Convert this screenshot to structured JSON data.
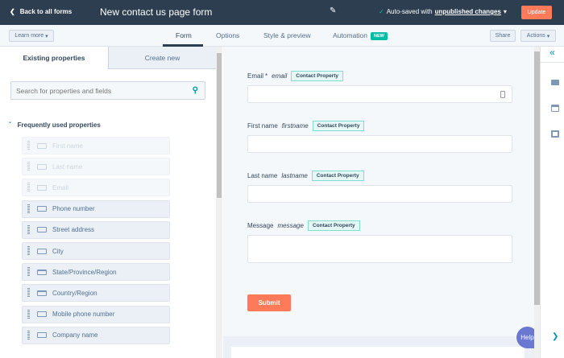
{
  "header": {
    "back": "Back to all forms",
    "title": "New contact us page form",
    "autosave_prefix": "Auto-saved with",
    "autosave_link": "unpublished changes",
    "update": "Update"
  },
  "subbar": {
    "learn_more": "Learn more",
    "tabs": [
      "Form",
      "Options",
      "Style & preview",
      "Automation"
    ],
    "new_badge": "NEW",
    "share": "Share",
    "actions": "Actions",
    "active_tab": "Form"
  },
  "left": {
    "tabs": [
      "Existing properties",
      "Create new"
    ],
    "search_placeholder": "Search for properties and fields",
    "section": "Frequently used properties",
    "items": [
      {
        "label": "First name",
        "disabled": true
      },
      {
        "label": "Last name",
        "disabled": true
      },
      {
        "label": "Email",
        "disabled": true
      },
      {
        "label": "Phone number"
      },
      {
        "label": "Street address"
      },
      {
        "label": "City"
      },
      {
        "label": "State/Province/Region",
        "icon": "select"
      },
      {
        "label": "Country/Region",
        "icon": "select"
      },
      {
        "label": "Mobile phone number"
      },
      {
        "label": "Company name"
      }
    ]
  },
  "form": {
    "fields": [
      {
        "label": "Email",
        "required": "*",
        "name": "email",
        "badge": "Contact Property"
      },
      {
        "label": "First name",
        "name": "firstname",
        "badge": "Contact Property"
      },
      {
        "label": "Last name",
        "name": "lastname",
        "badge": "Contact Property"
      },
      {
        "label": "Message",
        "name": "message",
        "badge": "Contact Property"
      }
    ],
    "submit": "Submit"
  },
  "help": "Help",
  "colors": {
    "header": "#2d3e50",
    "accent": "#ff7a59",
    "teal": "#00bda5",
    "help": "#6a78d1"
  }
}
